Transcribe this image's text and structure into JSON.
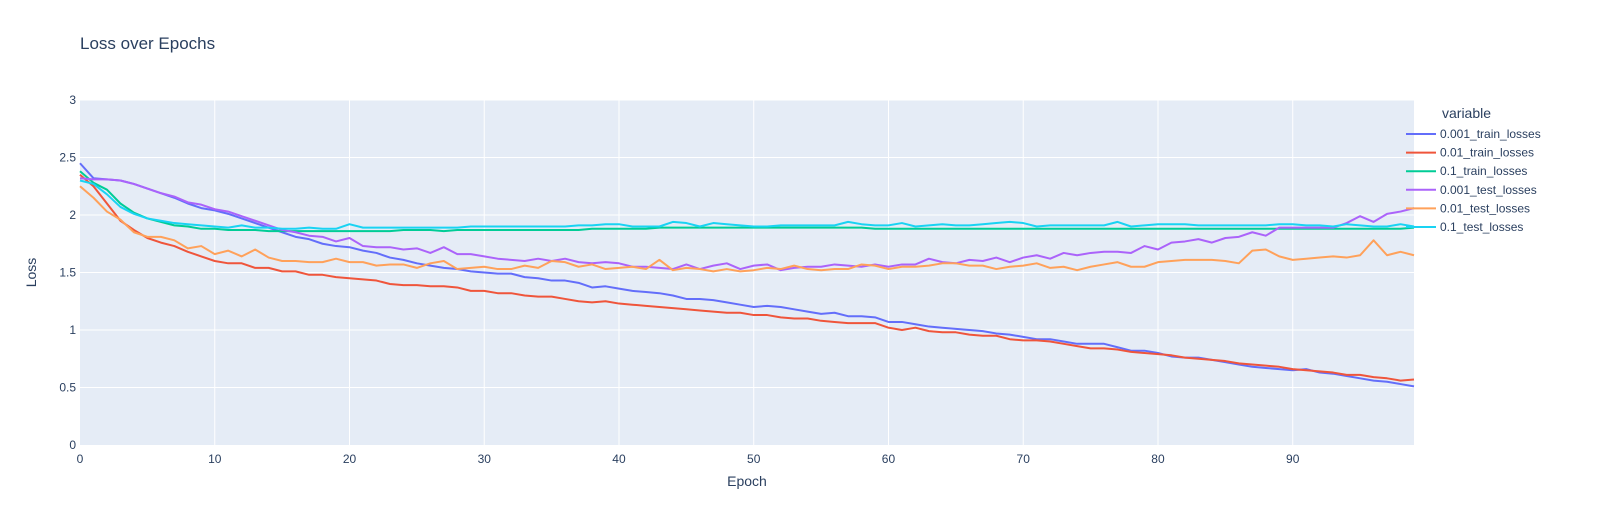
{
  "chart_data": {
    "type": "line",
    "title": "Loss over Epochs",
    "xlabel": "Epoch",
    "ylabel": "Loss",
    "xlim": [
      0,
      99
    ],
    "ylim": [
      0,
      3
    ],
    "xticks": [
      0,
      10,
      20,
      30,
      40,
      50,
      60,
      70,
      80,
      90
    ],
    "yticks": [
      0,
      0.5,
      1,
      1.5,
      2,
      2.5,
      3
    ],
    "ytick_labels": [
      "0",
      "0.5",
      "1",
      "1.5",
      "2",
      "2.5",
      "3"
    ],
    "grid": true,
    "legend_title": "variable",
    "legend_position": "right",
    "x": [
      0,
      1,
      2,
      3,
      4,
      5,
      6,
      7,
      8,
      9,
      10,
      11,
      12,
      13,
      14,
      15,
      16,
      17,
      18,
      19,
      20,
      21,
      22,
      23,
      24,
      25,
      26,
      27,
      28,
      29,
      30,
      31,
      32,
      33,
      34,
      35,
      36,
      37,
      38,
      39,
      40,
      41,
      42,
      43,
      44,
      45,
      46,
      47,
      48,
      49,
      50,
      51,
      52,
      53,
      54,
      55,
      56,
      57,
      58,
      59,
      60,
      61,
      62,
      63,
      64,
      65,
      66,
      67,
      68,
      69,
      70,
      71,
      72,
      73,
      74,
      75,
      76,
      77,
      78,
      79,
      80,
      81,
      82,
      83,
      84,
      85,
      86,
      87,
      88,
      89,
      90,
      91,
      92,
      93,
      94,
      95,
      96,
      97,
      98,
      99
    ],
    "series": [
      {
        "name": "0.001_train_losses",
        "color": "#636efa",
        "values": [
          2.45,
          2.32,
          2.31,
          2.3,
          2.27,
          2.23,
          2.19,
          2.15,
          2.1,
          2.06,
          2.04,
          2.01,
          1.97,
          1.93,
          1.89,
          1.85,
          1.81,
          1.79,
          1.75,
          1.73,
          1.72,
          1.69,
          1.67,
          1.63,
          1.61,
          1.58,
          1.56,
          1.54,
          1.53,
          1.51,
          1.5,
          1.49,
          1.49,
          1.46,
          1.45,
          1.43,
          1.43,
          1.41,
          1.37,
          1.38,
          1.36,
          1.34,
          1.33,
          1.32,
          1.3,
          1.27,
          1.27,
          1.26,
          1.24,
          1.22,
          1.2,
          1.21,
          1.2,
          1.18,
          1.16,
          1.14,
          1.15,
          1.12,
          1.12,
          1.11,
          1.07,
          1.07,
          1.05,
          1.03,
          1.02,
          1.01,
          1.0,
          0.99,
          0.97,
          0.96,
          0.94,
          0.92,
          0.92,
          0.9,
          0.88,
          0.88,
          0.88,
          0.85,
          0.82,
          0.82,
          0.8,
          0.77,
          0.76,
          0.76,
          0.74,
          0.72,
          0.7,
          0.68,
          0.67,
          0.66,
          0.65,
          0.66,
          0.63,
          0.62,
          0.6,
          0.58,
          0.56,
          0.55,
          0.53,
          0.51
        ]
      },
      {
        "name": "0.01_train_losses",
        "color": "#ef553b",
        "values": [
          2.35,
          2.25,
          2.1,
          1.95,
          1.87,
          1.8,
          1.76,
          1.73,
          1.68,
          1.64,
          1.6,
          1.58,
          1.58,
          1.54,
          1.54,
          1.51,
          1.51,
          1.48,
          1.48,
          1.46,
          1.45,
          1.44,
          1.43,
          1.4,
          1.39,
          1.39,
          1.38,
          1.38,
          1.37,
          1.34,
          1.34,
          1.32,
          1.32,
          1.3,
          1.29,
          1.29,
          1.27,
          1.25,
          1.24,
          1.25,
          1.23,
          1.22,
          1.21,
          1.2,
          1.19,
          1.18,
          1.17,
          1.16,
          1.15,
          1.15,
          1.13,
          1.13,
          1.11,
          1.1,
          1.1,
          1.08,
          1.07,
          1.06,
          1.06,
          1.06,
          1.02,
          1.0,
          1.02,
          0.99,
          0.98,
          0.98,
          0.96,
          0.95,
          0.95,
          0.92,
          0.91,
          0.91,
          0.9,
          0.88,
          0.86,
          0.84,
          0.84,
          0.83,
          0.81,
          0.8,
          0.79,
          0.78,
          0.76,
          0.75,
          0.74,
          0.73,
          0.71,
          0.7,
          0.69,
          0.68,
          0.66,
          0.65,
          0.64,
          0.63,
          0.61,
          0.61,
          0.59,
          0.58,
          0.56,
          0.57
        ]
      },
      {
        "name": "0.1_train_losses",
        "color": "#00cc96",
        "values": [
          2.38,
          2.28,
          2.22,
          2.1,
          2.02,
          1.97,
          1.94,
          1.91,
          1.9,
          1.88,
          1.88,
          1.87,
          1.87,
          1.87,
          1.86,
          1.86,
          1.86,
          1.86,
          1.86,
          1.86,
          1.86,
          1.86,
          1.86,
          1.86,
          1.87,
          1.87,
          1.87,
          1.86,
          1.87,
          1.87,
          1.87,
          1.87,
          1.87,
          1.87,
          1.87,
          1.87,
          1.87,
          1.87,
          1.88,
          1.88,
          1.88,
          1.88,
          1.88,
          1.89,
          1.89,
          1.89,
          1.89,
          1.89,
          1.89,
          1.89,
          1.89,
          1.89,
          1.89,
          1.89,
          1.89,
          1.89,
          1.89,
          1.89,
          1.89,
          1.88,
          1.88,
          1.88,
          1.88,
          1.88,
          1.88,
          1.88,
          1.88,
          1.88,
          1.88,
          1.88,
          1.88,
          1.88,
          1.88,
          1.88,
          1.88,
          1.88,
          1.88,
          1.88,
          1.88,
          1.88,
          1.88,
          1.88,
          1.88,
          1.88,
          1.88,
          1.88,
          1.88,
          1.88,
          1.88,
          1.88,
          1.88,
          1.88,
          1.88,
          1.88,
          1.88,
          1.88,
          1.88,
          1.88,
          1.88,
          1.89
        ]
      },
      {
        "name": "0.001_test_losses",
        "color": "#ab63fa",
        "values": [
          2.32,
          2.31,
          2.31,
          2.3,
          2.27,
          2.23,
          2.19,
          2.16,
          2.11,
          2.09,
          2.05,
          2.03,
          1.99,
          1.95,
          1.91,
          1.87,
          1.85,
          1.82,
          1.81,
          1.77,
          1.8,
          1.73,
          1.72,
          1.72,
          1.7,
          1.71,
          1.67,
          1.72,
          1.66,
          1.66,
          1.64,
          1.62,
          1.61,
          1.6,
          1.62,
          1.6,
          1.62,
          1.59,
          1.58,
          1.59,
          1.58,
          1.55,
          1.55,
          1.54,
          1.53,
          1.57,
          1.53,
          1.56,
          1.58,
          1.53,
          1.56,
          1.57,
          1.52,
          1.54,
          1.55,
          1.55,
          1.57,
          1.56,
          1.55,
          1.57,
          1.55,
          1.57,
          1.57,
          1.62,
          1.59,
          1.58,
          1.61,
          1.6,
          1.63,
          1.59,
          1.63,
          1.65,
          1.62,
          1.67,
          1.65,
          1.67,
          1.68,
          1.68,
          1.67,
          1.73,
          1.7,
          1.76,
          1.77,
          1.79,
          1.76,
          1.8,
          1.81,
          1.85,
          1.82,
          1.89,
          1.89,
          1.89,
          1.89,
          1.89,
          1.93,
          1.99,
          1.94,
          2.01,
          2.03,
          2.06
        ]
      },
      {
        "name": "0.01_test_losses",
        "color": "#ffa15a",
        "values": [
          2.25,
          2.15,
          2.03,
          1.96,
          1.85,
          1.81,
          1.81,
          1.78,
          1.71,
          1.73,
          1.66,
          1.69,
          1.64,
          1.7,
          1.63,
          1.6,
          1.6,
          1.59,
          1.59,
          1.62,
          1.59,
          1.59,
          1.56,
          1.57,
          1.57,
          1.54,
          1.58,
          1.6,
          1.53,
          1.54,
          1.55,
          1.53,
          1.53,
          1.56,
          1.54,
          1.6,
          1.59,
          1.55,
          1.57,
          1.53,
          1.54,
          1.55,
          1.53,
          1.61,
          1.52,
          1.54,
          1.53,
          1.51,
          1.53,
          1.51,
          1.52,
          1.54,
          1.53,
          1.56,
          1.53,
          1.52,
          1.53,
          1.53,
          1.57,
          1.56,
          1.53,
          1.55,
          1.55,
          1.56,
          1.58,
          1.58,
          1.56,
          1.56,
          1.53,
          1.55,
          1.56,
          1.58,
          1.54,
          1.55,
          1.52,
          1.55,
          1.57,
          1.59,
          1.55,
          1.55,
          1.59,
          1.6,
          1.61,
          1.61,
          1.61,
          1.6,
          1.58,
          1.69,
          1.7,
          1.64,
          1.61,
          1.62,
          1.63,
          1.64,
          1.63,
          1.65,
          1.78,
          1.65,
          1.68,
          1.65
        ]
      },
      {
        "name": "0.1_test_losses",
        "color": "#19d3f3",
        "values": [
          2.3,
          2.27,
          2.18,
          2.07,
          2.01,
          1.97,
          1.95,
          1.93,
          1.92,
          1.91,
          1.9,
          1.89,
          1.91,
          1.89,
          1.89,
          1.88,
          1.88,
          1.89,
          1.88,
          1.88,
          1.92,
          1.89,
          1.89,
          1.89,
          1.89,
          1.89,
          1.89,
          1.89,
          1.89,
          1.9,
          1.9,
          1.9,
          1.9,
          1.9,
          1.9,
          1.9,
          1.9,
          1.91,
          1.91,
          1.92,
          1.92,
          1.9,
          1.9,
          1.9,
          1.94,
          1.93,
          1.9,
          1.93,
          1.92,
          1.91,
          1.9,
          1.9,
          1.91,
          1.91,
          1.91,
          1.91,
          1.91,
          1.94,
          1.92,
          1.91,
          1.91,
          1.93,
          1.9,
          1.91,
          1.92,
          1.91,
          1.91,
          1.92,
          1.93,
          1.94,
          1.93,
          1.9,
          1.91,
          1.91,
          1.91,
          1.91,
          1.91,
          1.94,
          1.9,
          1.91,
          1.92,
          1.92,
          1.92,
          1.91,
          1.91,
          1.91,
          1.91,
          1.91,
          1.91,
          1.92,
          1.92,
          1.91,
          1.91,
          1.9,
          1.92,
          1.91,
          1.9,
          1.9,
          1.92,
          1.9
        ]
      }
    ]
  }
}
